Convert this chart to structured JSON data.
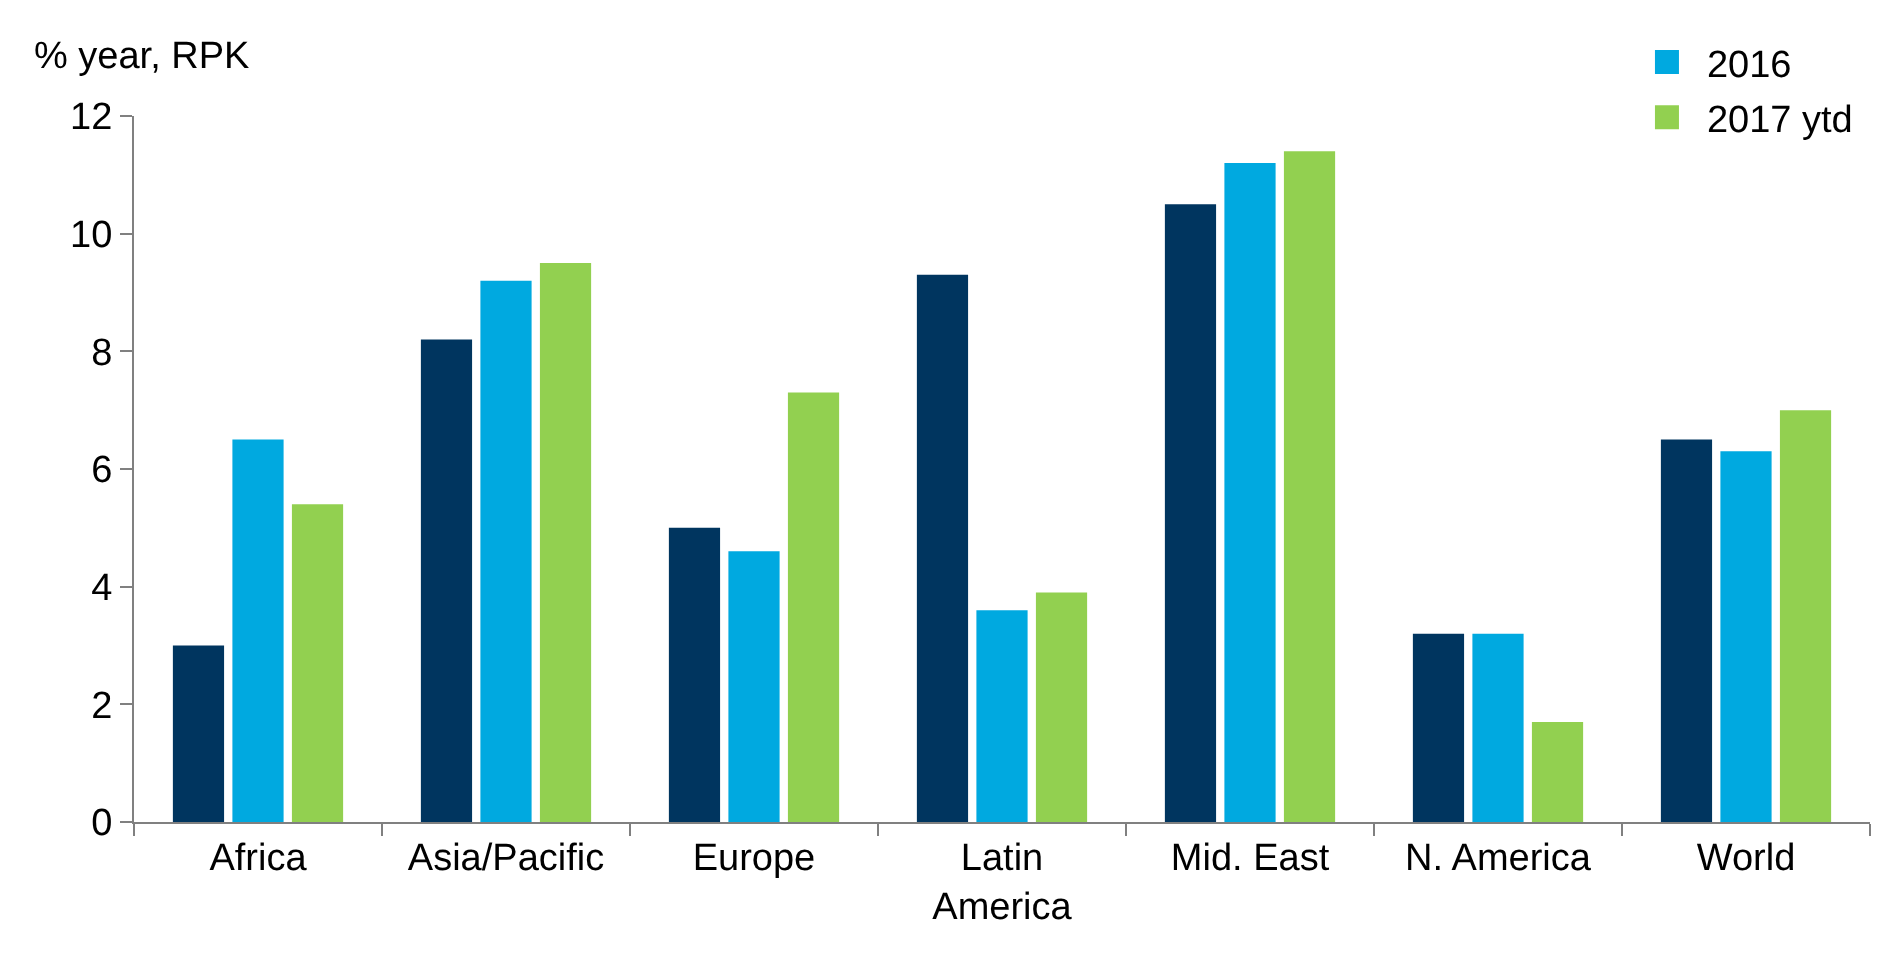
{
  "chart_data": {
    "type": "bar",
    "ylabel": "% year, RPK",
    "categories": [
      "Africa",
      "Asia/Pacific",
      "Europe",
      "Latin America",
      "Mid. East",
      "N. America",
      "World"
    ],
    "series": [
      {
        "color": "#00355f",
        "values": [
          3.0,
          8.2,
          5.0,
          9.3,
          10.5,
          3.2,
          6.5
        ]
      },
      {
        "name": "2016",
        "color": "#00a9e0",
        "values": [
          6.5,
          9.2,
          4.6,
          3.6,
          11.2,
          3.2,
          6.3
        ]
      },
      {
        "name": "2017 ytd",
        "color": "#92d050",
        "values": [
          5.4,
          9.5,
          7.3,
          3.9,
          11.4,
          1.7,
          7.0
        ]
      }
    ],
    "ylim": [
      0,
      12
    ],
    "yticks": [
      0,
      2,
      4,
      6,
      8,
      10,
      12
    ],
    "grid": false,
    "legend": "top right"
  }
}
